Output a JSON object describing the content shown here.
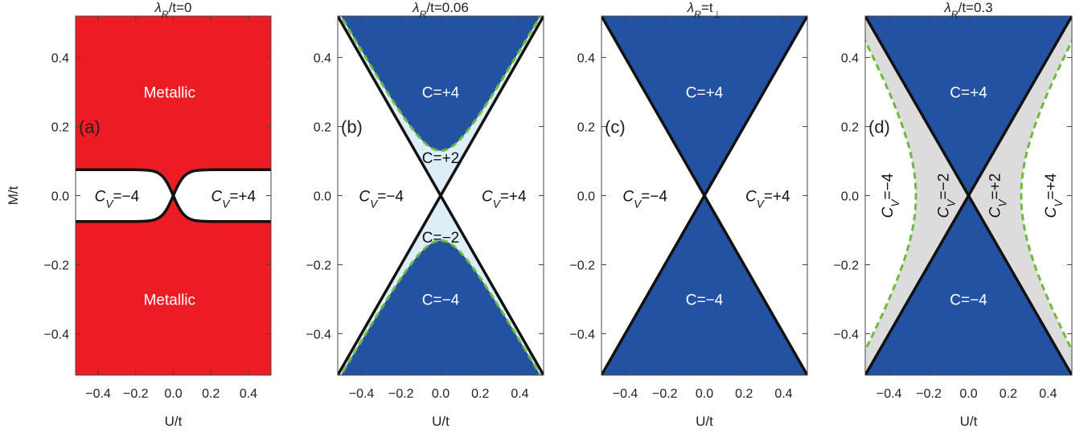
{
  "chart_data": [
    {
      "type": "area",
      "panel": "(a)",
      "title": {
        "sym": "λ",
        "sub": "R",
        "rest": "/t=0"
      },
      "xlabel": "U/t",
      "ylabel": "M/t",
      "xlim": [
        -0.52,
        0.52
      ],
      "ylim": [
        -0.52,
        0.52
      ],
      "xticks": [
        -0.4,
        -0.2,
        0.0,
        0.2,
        0.4
      ],
      "xtick_labels": [
        "−0.4",
        "−0.2",
        "0.0",
        "0.2",
        "0.4"
      ],
      "yticks": [
        0.4,
        0.2,
        0.0,
        -0.2,
        -0.4
      ],
      "ytick_labels": [
        "0.4",
        "0.2",
        "0.0",
        "−0.2",
        "−0.4"
      ],
      "background": "#ed1c24",
      "boundary": {
        "kind": "lens",
        "plateau_M": 0.075,
        "color": "#111111"
      },
      "regions": [
        {
          "text": "Metallic",
          "U": -0.02,
          "M": 0.3,
          "color": "#ffffff",
          "rot": 0
        },
        {
          "text": "Metallic",
          "U": -0.02,
          "M": -0.3,
          "color": "#ffffff",
          "rot": 0
        },
        {
          "text": "C",
          "sub": "V",
          "rest": "=−4",
          "U": -0.3,
          "M": 0.0,
          "color": "#111111",
          "rot": 0
        },
        {
          "text": "C",
          "sub": "V",
          "rest": "=+4",
          "U": 0.32,
          "M": 0.0,
          "color": "#111111",
          "rot": 0
        }
      ]
    },
    {
      "type": "area",
      "panel": "(b)",
      "title": {
        "sym": "λ",
        "sub": "R",
        "rest": "/t=0.06"
      },
      "xlabel": "U/t",
      "xlim": [
        -0.52,
        0.52
      ],
      "ylim": [
        -0.52,
        0.52
      ],
      "xticks": [
        -0.4,
        -0.2,
        0.0,
        0.2,
        0.4
      ],
      "xtick_labels": [
        "−0.4",
        "−0.2",
        "0.0",
        "0.2",
        "0.4"
      ],
      "yticks": [
        0.4,
        0.2,
        0.0,
        -0.2,
        -0.4
      ],
      "ytick_labels": [
        "0.4",
        "0.2",
        "0.0",
        "−0.2",
        "−0.4"
      ],
      "background": "#ffffff",
      "boundary": {
        "kind": "cone-hyperbola",
        "M0": 0.13,
        "cone_fill": "#deeef9",
        "hyper_fill": "#2452a3",
        "dashed": "#6dbb3c",
        "line": "#111111"
      },
      "regions": [
        {
          "text": "C=+4",
          "U": 0.0,
          "M": 0.3,
          "color": "#ffffff",
          "rot": 0
        },
        {
          "text": "C=−4",
          "U": 0.0,
          "M": -0.3,
          "color": "#ffffff",
          "rot": 0
        },
        {
          "text": "C=+2",
          "U": 0.0,
          "M": 0.11,
          "color": "#111111",
          "rot": 0
        },
        {
          "text": "C=−2",
          "U": 0.0,
          "M": -0.12,
          "color": "#111111",
          "rot": 0
        },
        {
          "text": "C",
          "sub": "V",
          "rest": "=−4",
          "U": -0.3,
          "M": 0.0,
          "color": "#111111",
          "rot": 0
        },
        {
          "text": "C",
          "sub": "V",
          "rest": "=+4",
          "U": 0.32,
          "M": 0.0,
          "color": "#111111",
          "rot": 0
        }
      ]
    },
    {
      "type": "area",
      "panel": "(c)",
      "title": {
        "sym": "λ",
        "sub": "R",
        "rest": "=t",
        "sub2": "⊥"
      },
      "xlabel": "U/t",
      "xlim": [
        -0.52,
        0.52
      ],
      "ylim": [
        -0.52,
        0.52
      ],
      "xticks": [
        -0.4,
        -0.2,
        0.0,
        0.2,
        0.4
      ],
      "xtick_labels": [
        "−0.4",
        "−0.2",
        "0.0",
        "0.2",
        "0.4"
      ],
      "yticks": [
        0.4,
        0.2,
        0.0,
        -0.2,
        -0.4
      ],
      "ytick_labels": [
        "0.4",
        "0.2",
        "0.0",
        "−0.2",
        "−0.4"
      ],
      "background": "#ffffff",
      "boundary": {
        "kind": "cone",
        "cone_fill": "#2452a3",
        "line": "#111111"
      },
      "regions": [
        {
          "text": "C=+4",
          "U": 0.0,
          "M": 0.3,
          "color": "#ffffff",
          "rot": 0
        },
        {
          "text": "C=−4",
          "U": 0.0,
          "M": -0.3,
          "color": "#ffffff",
          "rot": 0
        },
        {
          "text": "C",
          "sub": "V",
          "rest": "=−4",
          "U": -0.3,
          "M": 0.0,
          "color": "#111111",
          "rot": 0
        },
        {
          "text": "C",
          "sub": "V",
          "rest": "=+4",
          "U": 0.32,
          "M": 0.0,
          "color": "#111111",
          "rot": 0
        }
      ]
    },
    {
      "type": "area",
      "panel": "(d)",
      "title": {
        "sym": "λ",
        "sub": "R",
        "rest": "/t=0.3"
      },
      "xlabel": "U/t",
      "xlim": [
        -0.52,
        0.52
      ],
      "ylim": [
        -0.52,
        0.52
      ],
      "xticks": [
        -0.4,
        -0.2,
        0.0,
        0.2,
        0.4
      ],
      "xtick_labels": [
        "−0.4",
        "−0.2",
        "0.0",
        "0.2",
        "0.4"
      ],
      "yticks": [
        0.4,
        0.2,
        0.0,
        -0.2,
        -0.4
      ],
      "ytick_labels": [
        "0.4",
        "0.2",
        "0.0",
        "−0.2",
        "−0.4"
      ],
      "background": "#ffffff",
      "boundary": {
        "kind": "cone-sidehyper",
        "U0": 0.265,
        "side_fill": "#dcdcdc",
        "cone_fill": "#2452a3",
        "dashed": "#6dbb3c",
        "line": "#111111"
      },
      "regions": [
        {
          "text": "C=+4",
          "U": 0.0,
          "M": 0.3,
          "color": "#ffffff",
          "rot": 0
        },
        {
          "text": "C=−4",
          "U": 0.0,
          "M": -0.3,
          "color": "#ffffff",
          "rot": 0
        },
        {
          "text": "C",
          "sub": "V",
          "rest": "=−4",
          "U": -0.41,
          "M": 0.0,
          "color": "#111111",
          "rot": -90
        },
        {
          "text": "C",
          "sub": "V",
          "rest": "=−2",
          "U": -0.13,
          "M": 0.0,
          "color": "#111111",
          "rot": -90
        },
        {
          "text": "C",
          "sub": "V",
          "rest": "=+2",
          "U": 0.13,
          "M": 0.0,
          "color": "#111111",
          "rot": -90
        },
        {
          "text": "C",
          "sub": "V",
          "rest": "=+4",
          "U": 0.41,
          "M": 0.0,
          "color": "#111111",
          "rot": -90
        }
      ]
    }
  ]
}
